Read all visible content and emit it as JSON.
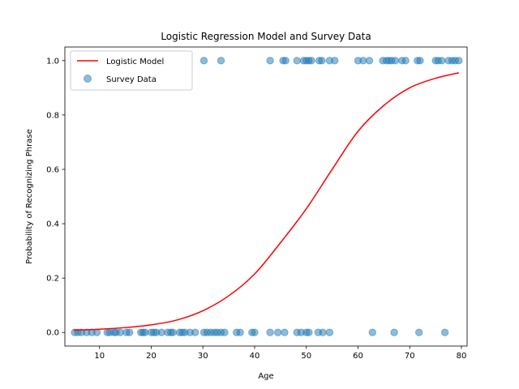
{
  "chart_data": {
    "type": "scatter",
    "title": "Logistic Regression Model and Survey Data",
    "xlabel": "Age",
    "ylabel": "Probability of Recognizing Phrase",
    "xlim": [
      3.3,
      81.1
    ],
    "ylim": [
      -0.05,
      1.05
    ],
    "xticks": [
      10,
      20,
      30,
      40,
      50,
      60,
      70,
      80
    ],
    "yticks": [
      0.0,
      0.2,
      0.4,
      0.6,
      0.8,
      1.0
    ],
    "xtick_labels": [
      "10",
      "20",
      "30",
      "40",
      "50",
      "60",
      "70",
      "80"
    ],
    "ytick_labels": [
      "0.0",
      "0.2",
      "0.4",
      "0.6",
      "0.8",
      "1.0"
    ],
    "grid": false,
    "legend_position": "top-left",
    "legend": [
      "Logistic Model",
      "Survey Data"
    ],
    "model_series": {
      "name": "Logistic Model",
      "type": "line",
      "color": "#ff0000",
      "x": [
        5.0,
        10.0,
        15.0,
        20.0,
        25.0,
        30.0,
        35.0,
        40.0,
        45.0,
        50.0,
        55.0,
        60.0,
        65.0,
        70.0,
        75.0,
        79.5
      ],
      "y": [
        0.008,
        0.012,
        0.018,
        0.028,
        0.046,
        0.08,
        0.135,
        0.215,
        0.33,
        0.455,
        0.6,
        0.74,
        0.835,
        0.9,
        0.935,
        0.955
      ]
    },
    "survey_series": {
      "name": "Survey Data",
      "type": "scatter",
      "color": "#1f77b4",
      "points": [
        [
          5.2,
          0
        ],
        [
          5.8,
          0
        ],
        [
          6.5,
          0
        ],
        [
          7.5,
          0
        ],
        [
          8.5,
          0
        ],
        [
          9.5,
          0
        ],
        [
          11.5,
          0
        ],
        [
          12.0,
          0
        ],
        [
          12.8,
          0
        ],
        [
          13.2,
          0
        ],
        [
          14.0,
          0
        ],
        [
          15.2,
          0
        ],
        [
          15.8,
          0
        ],
        [
          18.0,
          0
        ],
        [
          18.4,
          0
        ],
        [
          18.8,
          0
        ],
        [
          20.0,
          0
        ],
        [
          20.5,
          0
        ],
        [
          21.0,
          0
        ],
        [
          22.0,
          0
        ],
        [
          23.2,
          0
        ],
        [
          23.8,
          0
        ],
        [
          24.2,
          0
        ],
        [
          25.5,
          0
        ],
        [
          26.0,
          0
        ],
        [
          26.5,
          0
        ],
        [
          27.5,
          0
        ],
        [
          28.5,
          0
        ],
        [
          30.2,
          0
        ],
        [
          30.8,
          0
        ],
        [
          31.5,
          0
        ],
        [
          32.2,
          0
        ],
        [
          32.8,
          0
        ],
        [
          33.5,
          0
        ],
        [
          34.2,
          0
        ],
        [
          36.5,
          0
        ],
        [
          37.2,
          0
        ],
        [
          39.5,
          0
        ],
        [
          40.0,
          0
        ],
        [
          43.0,
          0
        ],
        [
          44.5,
          0
        ],
        [
          45.8,
          0
        ],
        [
          48.2,
          0
        ],
        [
          49.0,
          0
        ],
        [
          50.0,
          0
        ],
        [
          50.5,
          0
        ],
        [
          52.3,
          0
        ],
        [
          53.2,
          0
        ],
        [
          54.5,
          0
        ],
        [
          62.8,
          0
        ],
        [
          67.0,
          0
        ],
        [
          71.8,
          0
        ],
        [
          76.8,
          0
        ],
        [
          30.2,
          1
        ],
        [
          33.5,
          1
        ],
        [
          43.0,
          1
        ],
        [
          45.5,
          1
        ],
        [
          46.0,
          1
        ],
        [
          48.2,
          1
        ],
        [
          49.5,
          1
        ],
        [
          50.0,
          1
        ],
        [
          50.5,
          1
        ],
        [
          51.0,
          1
        ],
        [
          52.5,
          1
        ],
        [
          53.0,
          1
        ],
        [
          54.5,
          1
        ],
        [
          55.5,
          1
        ],
        [
          60.0,
          1
        ],
        [
          61.0,
          1
        ],
        [
          62.2,
          1
        ],
        [
          64.8,
          1
        ],
        [
          65.5,
          1
        ],
        [
          66.0,
          1
        ],
        [
          66.5,
          1
        ],
        [
          67.2,
          1
        ],
        [
          68.5,
          1
        ],
        [
          69.2,
          1
        ],
        [
          71.5,
          1
        ],
        [
          72.0,
          1
        ],
        [
          75.0,
          1
        ],
        [
          75.5,
          1
        ],
        [
          76.2,
          1
        ],
        [
          77.5,
          1
        ],
        [
          78.2,
          1
        ],
        [
          78.8,
          1
        ],
        [
          79.5,
          1
        ]
      ]
    }
  }
}
